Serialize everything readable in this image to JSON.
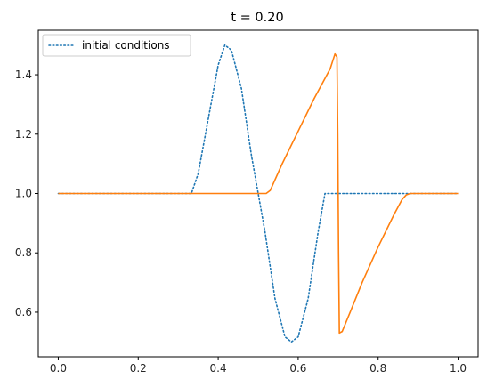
{
  "chart_data": {
    "type": "line",
    "title": "t =  0.20",
    "xlabel": "",
    "ylabel": "",
    "xlim": [
      -0.05,
      1.05
    ],
    "ylim": [
      0.45,
      1.55
    ],
    "xticks": [
      0.0,
      0.2,
      0.4,
      0.6,
      0.8,
      1.0
    ],
    "xtick_labels": [
      "0.0",
      "0.2",
      "0.4",
      "0.6",
      "0.8",
      "1.0"
    ],
    "yticks": [
      0.6,
      0.8,
      1.0,
      1.2,
      1.4
    ],
    "ytick_labels": [
      "0.6",
      "0.8",
      "1.0",
      "1.2",
      "1.4"
    ],
    "grid": false,
    "legend_position": "top-left",
    "series": [
      {
        "name": "initial conditions",
        "style": "dotted",
        "color": "#1f77b4",
        "x": [
          0.0,
          0.333,
          0.35,
          0.375,
          0.4,
          0.4167,
          0.433,
          0.458,
          0.483,
          0.5,
          0.517,
          0.542,
          0.567,
          0.583,
          0.6,
          0.625,
          0.65,
          0.667,
          1.0
        ],
        "y": [
          1.0,
          1.0,
          1.067,
          1.25,
          1.433,
          1.5,
          1.483,
          1.354,
          1.129,
          1.0,
          0.871,
          0.646,
          0.517,
          0.5,
          0.517,
          0.646,
          0.871,
          1.0,
          1.0
        ]
      },
      {
        "name": "",
        "style": "solid",
        "color": "#ff7f0e",
        "x": [
          0.0,
          0.5,
          0.52,
          0.53,
          0.54,
          0.56,
          0.6,
          0.64,
          0.68,
          0.692,
          0.697,
          0.699,
          0.701,
          0.703,
          0.71,
          0.73,
          0.76,
          0.8,
          0.84,
          0.86,
          0.87,
          0.88,
          1.0
        ],
        "y": [
          1.0,
          1.0,
          1.0,
          1.01,
          1.04,
          1.1,
          1.21,
          1.32,
          1.42,
          1.47,
          1.46,
          1.2,
          0.8,
          0.53,
          0.535,
          0.6,
          0.7,
          0.82,
          0.93,
          0.98,
          0.995,
          1.0,
          1.0
        ]
      }
    ]
  }
}
